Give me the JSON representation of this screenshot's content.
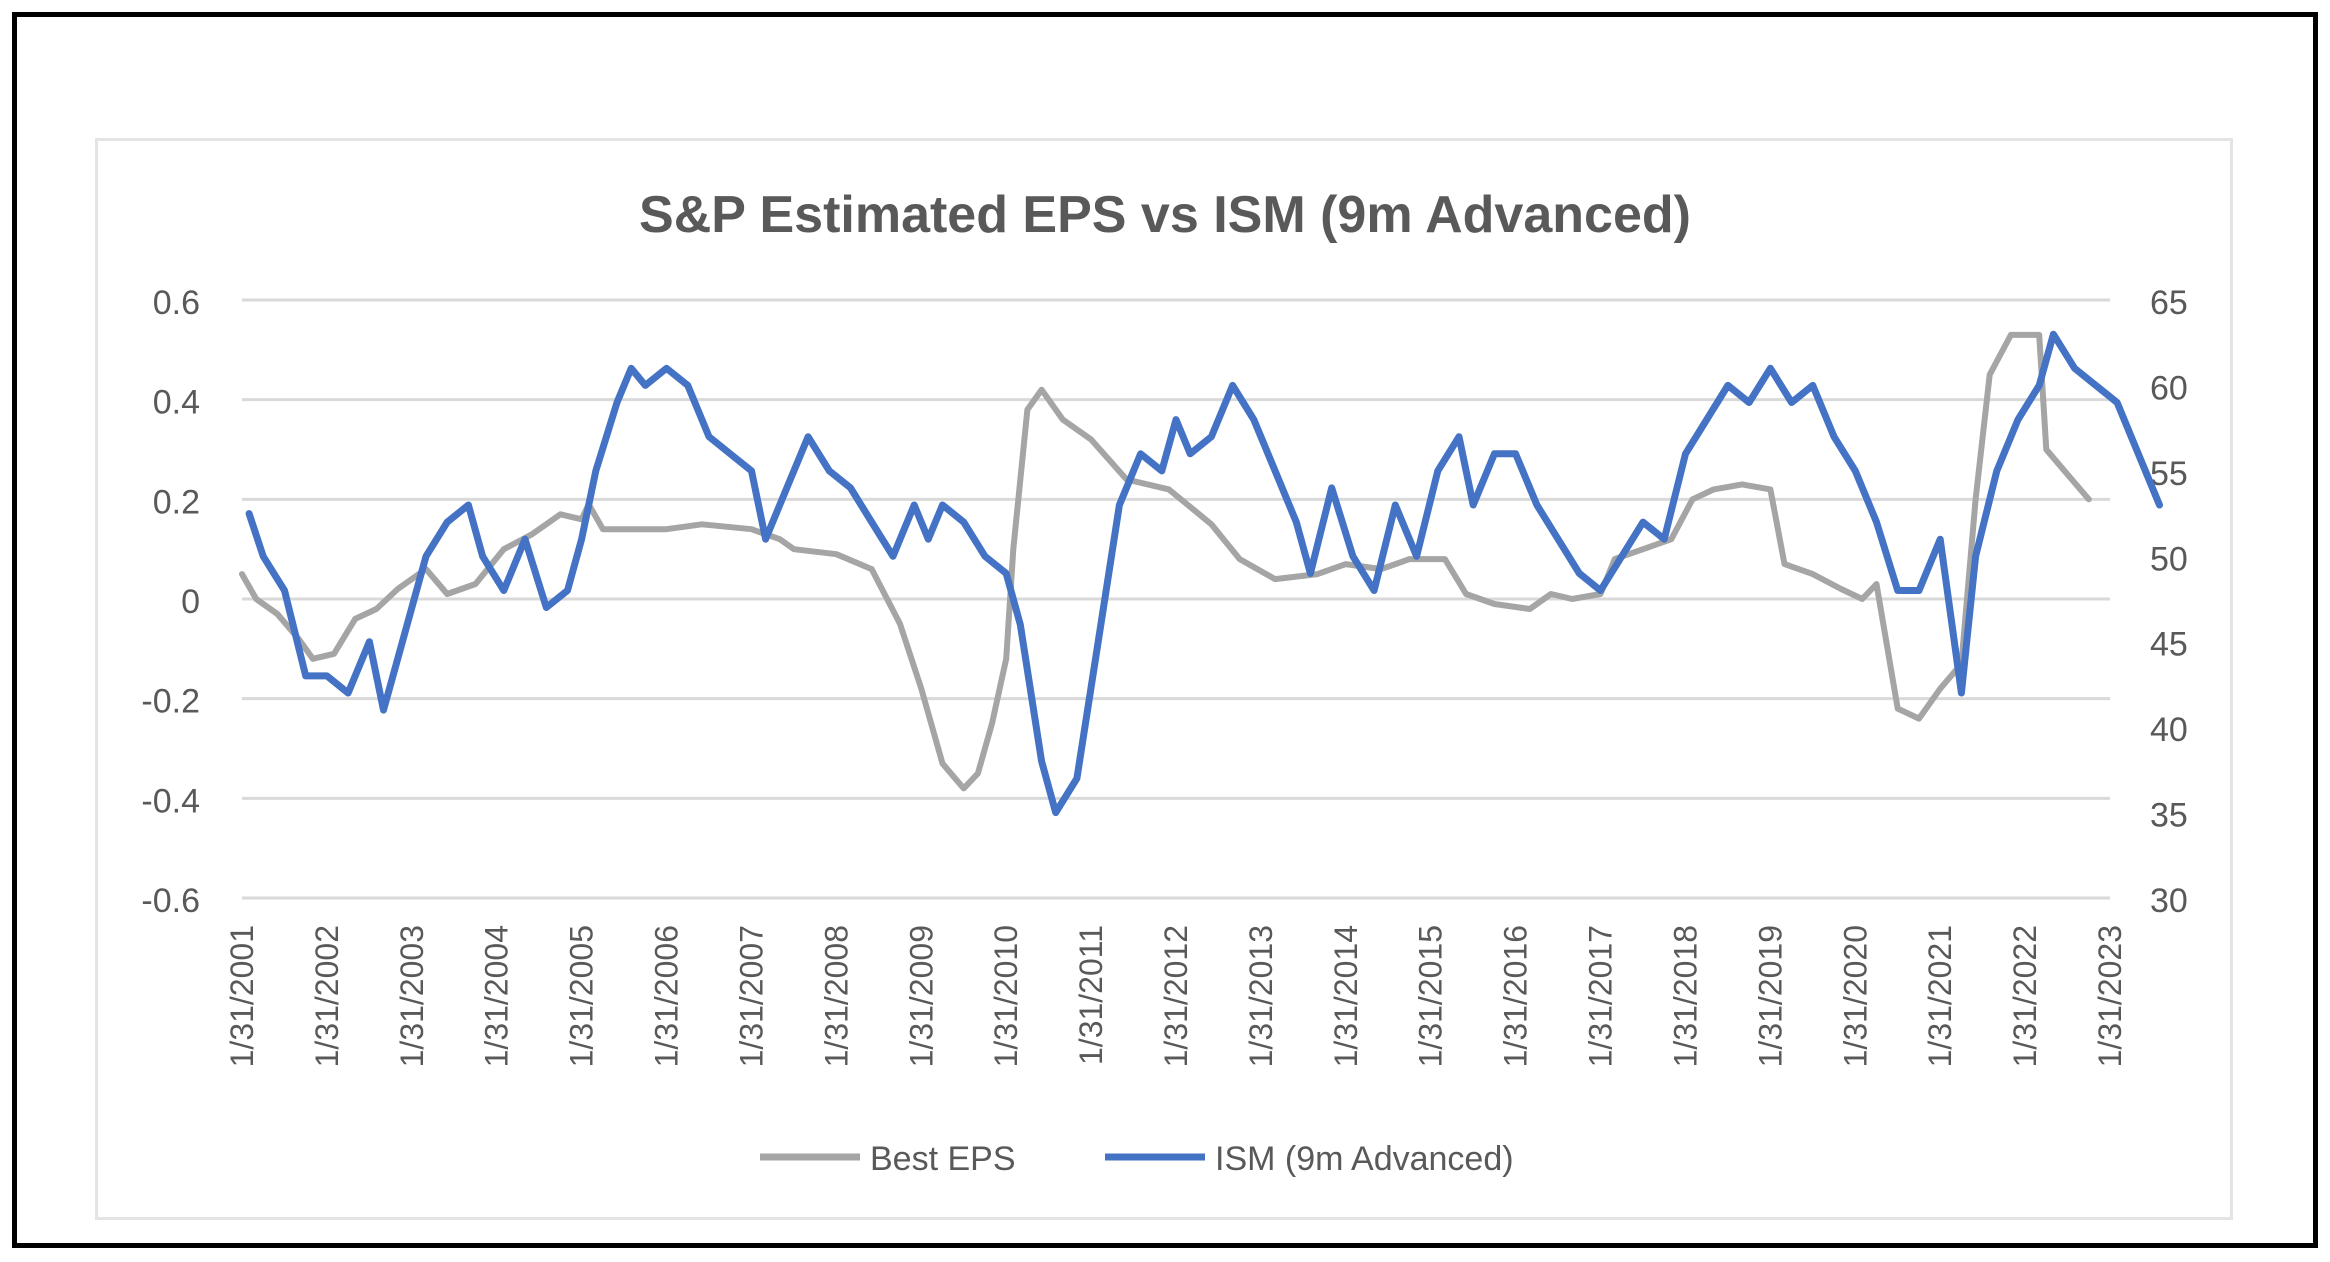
{
  "chart_data": {
    "type": "line",
    "title": "S&P Estimated EPS vs ISM (9m Advanced)",
    "x_tick_labels": [
      "1/31/2001",
      "1/31/2002",
      "1/31/2003",
      "1/31/2004",
      "1/31/2005",
      "1/31/2006",
      "1/31/2007",
      "1/31/2008",
      "1/31/2009",
      "1/31/2010",
      "1/31/2011",
      "1/31/2012",
      "1/31/2013",
      "1/31/2014",
      "1/31/2015",
      "1/31/2016",
      "1/31/2017",
      "1/31/2018",
      "1/31/2019",
      "1/31/2020",
      "1/31/2021",
      "1/31/2022",
      "1/31/2023"
    ],
    "y_left": {
      "ticks": [
        -0.6,
        -0.4,
        -0.2,
        0,
        0.2,
        0.4,
        0.6
      ],
      "tick_labels": [
        "-0.6",
        "-0.4",
        "-0.2",
        "0",
        "0.2",
        "0.4",
        "0.6"
      ],
      "range": [
        -0.6,
        0.6
      ]
    },
    "y_right": {
      "ticks": [
        30,
        35,
        40,
        45,
        50,
        55,
        60,
        65
      ],
      "tick_labels": [
        "30",
        "35",
        "40",
        "45",
        "50",
        "55",
        "60",
        "65"
      ],
      "range": [
        30,
        65
      ]
    },
    "grid": "horizontal",
    "legend": "bottom",
    "series": [
      {
        "name": "Best EPS",
        "axis": "left",
        "color": "#a5a5a5",
        "points": [
          [
            "2001-01",
            0.05
          ],
          [
            "2001-03",
            0.0
          ],
          [
            "2001-06",
            -0.03
          ],
          [
            "2001-09",
            -0.08
          ],
          [
            "2001-11",
            -0.12
          ],
          [
            "2002-02",
            -0.11
          ],
          [
            "2002-05",
            -0.04
          ],
          [
            "2002-08",
            -0.02
          ],
          [
            "2002-11",
            0.02
          ],
          [
            "2003-03",
            0.06
          ],
          [
            "2003-06",
            0.01
          ],
          [
            "2003-10",
            0.03
          ],
          [
            "2004-02",
            0.1
          ],
          [
            "2004-06",
            0.13
          ],
          [
            "2004-10",
            0.17
          ],
          [
            "2005-01",
            0.16
          ],
          [
            "2005-02",
            0.19
          ],
          [
            "2005-04",
            0.14
          ],
          [
            "2005-08",
            0.14
          ],
          [
            "2006-01",
            0.14
          ],
          [
            "2006-06",
            0.15
          ],
          [
            "2007-01",
            0.14
          ],
          [
            "2007-05",
            0.12
          ],
          [
            "2007-07",
            0.1
          ],
          [
            "2008-01",
            0.09
          ],
          [
            "2008-06",
            0.06
          ],
          [
            "2008-10",
            -0.05
          ],
          [
            "2009-01",
            -0.18
          ],
          [
            "2009-04",
            -0.33
          ],
          [
            "2009-07",
            -0.38
          ],
          [
            "2009-09",
            -0.35
          ],
          [
            "2009-11",
            -0.25
          ],
          [
            "2010-01",
            -0.12
          ],
          [
            "2010-02",
            0.1
          ],
          [
            "2010-04",
            0.38
          ],
          [
            "2010-06",
            0.42
          ],
          [
            "2010-09",
            0.36
          ],
          [
            "2011-01",
            0.32
          ],
          [
            "2011-06",
            0.24
          ],
          [
            "2011-12",
            0.22
          ],
          [
            "2012-06",
            0.15
          ],
          [
            "2012-10",
            0.08
          ],
          [
            "2013-03",
            0.04
          ],
          [
            "2013-09",
            0.05
          ],
          [
            "2014-01",
            0.07
          ],
          [
            "2014-06",
            0.06
          ],
          [
            "2014-10",
            0.08
          ],
          [
            "2015-03",
            0.08
          ],
          [
            "2015-06",
            0.01
          ],
          [
            "2015-10",
            -0.01
          ],
          [
            "2016-03",
            -0.02
          ],
          [
            "2016-06",
            0.01
          ],
          [
            "2016-09",
            0.0
          ],
          [
            "2017-01",
            0.01
          ],
          [
            "2017-03",
            0.08
          ],
          [
            "2017-07",
            0.1
          ],
          [
            "2017-11",
            0.12
          ],
          [
            "2018-02",
            0.2
          ],
          [
            "2018-05",
            0.22
          ],
          [
            "2018-09",
            0.23
          ],
          [
            "2019-01",
            0.22
          ],
          [
            "2019-03",
            0.07
          ],
          [
            "2019-07",
            0.05
          ],
          [
            "2019-11",
            0.02
          ],
          [
            "2020-02",
            0.0
          ],
          [
            "2020-04",
            0.03
          ],
          [
            "2020-07",
            -0.22
          ],
          [
            "2020-10",
            -0.24
          ],
          [
            "2021-01",
            -0.18
          ],
          [
            "2021-04",
            -0.13
          ],
          [
            "2021-06",
            0.2
          ],
          [
            "2021-08",
            0.45
          ],
          [
            "2021-11",
            0.53
          ],
          [
            "2022-03",
            0.53
          ],
          [
            "2022-04",
            0.3
          ],
          [
            "2022-07",
            0.25
          ],
          [
            "2022-10",
            0.2
          ]
        ]
      },
      {
        "name": "ISM (9m Advanced)",
        "axis": "right",
        "color": "#4472c4",
        "points": [
          [
            "2001-02",
            52.5
          ],
          [
            "2001-04",
            50
          ],
          [
            "2001-07",
            48
          ],
          [
            "2001-10",
            43
          ],
          [
            "2002-01",
            43
          ],
          [
            "2002-04",
            42
          ],
          [
            "2002-07",
            45
          ],
          [
            "2002-09",
            41
          ],
          [
            "2002-11",
            44
          ],
          [
            "2003-03",
            50
          ],
          [
            "2003-06",
            52
          ],
          [
            "2003-09",
            53
          ],
          [
            "2003-11",
            50
          ],
          [
            "2004-02",
            48
          ],
          [
            "2004-05",
            51
          ],
          [
            "2004-08",
            47
          ],
          [
            "2004-11",
            48
          ],
          [
            "2005-01",
            51
          ],
          [
            "2005-03",
            55
          ],
          [
            "2005-06",
            59
          ],
          [
            "2005-08",
            61
          ],
          [
            "2005-10",
            60
          ],
          [
            "2006-01",
            61
          ],
          [
            "2006-04",
            60
          ],
          [
            "2006-07",
            57
          ],
          [
            "2006-10",
            56
          ],
          [
            "2007-01",
            55
          ],
          [
            "2007-03",
            51
          ],
          [
            "2007-06",
            54
          ],
          [
            "2007-09",
            57
          ],
          [
            "2007-12",
            55
          ],
          [
            "2008-03",
            54
          ],
          [
            "2008-06",
            52
          ],
          [
            "2008-09",
            50
          ],
          [
            "2008-12",
            53
          ],
          [
            "2009-02",
            51
          ],
          [
            "2009-04",
            53
          ],
          [
            "2009-07",
            52
          ],
          [
            "2009-10",
            50
          ],
          [
            "2010-01",
            49
          ],
          [
            "2010-03",
            46
          ],
          [
            "2010-06",
            38
          ],
          [
            "2010-08",
            35
          ],
          [
            "2010-11",
            37
          ],
          [
            "2011-02",
            45
          ],
          [
            "2011-05",
            53
          ],
          [
            "2011-08",
            56
          ],
          [
            "2011-11",
            55
          ],
          [
            "2012-01",
            58
          ],
          [
            "2012-03",
            56
          ],
          [
            "2012-06",
            57
          ],
          [
            "2012-09",
            60
          ],
          [
            "2012-12",
            58
          ],
          [
            "2013-03",
            55
          ],
          [
            "2013-06",
            52
          ],
          [
            "2013-08",
            49
          ],
          [
            "2013-11",
            54
          ],
          [
            "2014-02",
            50
          ],
          [
            "2014-05",
            48
          ],
          [
            "2014-08",
            53
          ],
          [
            "2014-11",
            50
          ],
          [
            "2015-02",
            55
          ],
          [
            "2015-05",
            57
          ],
          [
            "2015-07",
            53
          ],
          [
            "2015-10",
            56
          ],
          [
            "2016-01",
            56
          ],
          [
            "2016-04",
            53
          ],
          [
            "2016-07",
            51
          ],
          [
            "2016-10",
            49
          ],
          [
            "2017-01",
            48
          ],
          [
            "2017-04",
            50
          ],
          [
            "2017-07",
            52
          ],
          [
            "2017-10",
            51
          ],
          [
            "2018-01",
            56
          ],
          [
            "2018-04",
            58
          ],
          [
            "2018-07",
            60
          ],
          [
            "2018-10",
            59
          ],
          [
            "2019-01",
            61
          ],
          [
            "2019-04",
            59
          ],
          [
            "2019-07",
            60
          ],
          [
            "2019-10",
            57
          ],
          [
            "2020-01",
            55
          ],
          [
            "2020-04",
            52
          ],
          [
            "2020-07",
            48
          ],
          [
            "2020-10",
            48
          ],
          [
            "2021-01",
            51
          ],
          [
            "2021-04",
            42
          ],
          [
            "2021-06",
            50
          ],
          [
            "2021-09",
            55
          ],
          [
            "2021-12",
            58
          ],
          [
            "2022-03",
            60
          ],
          [
            "2022-05",
            63
          ],
          [
            "2022-08",
            61
          ],
          [
            "2022-11",
            60
          ],
          [
            "2023-02",
            59
          ],
          [
            "2023-05",
            56
          ],
          [
            "2023-08",
            53
          ]
        ]
      }
    ]
  }
}
